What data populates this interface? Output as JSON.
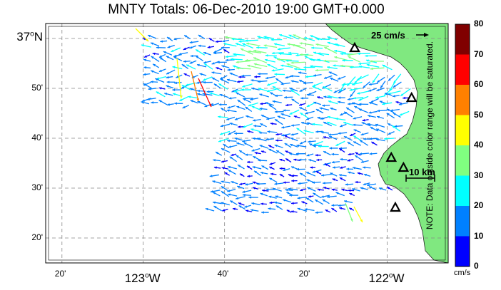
{
  "map": {
    "title": "MNTY Totals: 06-Dec-2010 19:00 GMT+0.000",
    "lat_labels": [
      {
        "text": "37",
        "sup": "o",
        "suffix": "N",
        "lat": 37.0,
        "big": true
      },
      {
        "text": "50'",
        "lat": 36.8333
      },
      {
        "text": "40'",
        "lat": 36.6667
      },
      {
        "text": "30'",
        "lat": 36.5
      },
      {
        "text": "20'",
        "lat": 36.3333
      }
    ],
    "lon_labels": [
      {
        "text": "20'",
        "lon": -123.3333
      },
      {
        "text": "123",
        "sup": "o",
        "suffix": "W",
        "lon": -123.0,
        "big": true
      },
      {
        "text": "40'",
        "lon": -122.6667
      },
      {
        "text": "20'",
        "lon": -122.3333
      },
      {
        "text": "122",
        "sup": "o",
        "suffix": "W",
        "lon": -122.0,
        "big": true
      }
    ],
    "extent": {
      "lon_min": -123.4,
      "lon_max": -121.75,
      "lat_min": 36.25,
      "lat_max": 37.05
    },
    "reference_arrow_label": "25 cm/s",
    "scale_bar_label": "10 km",
    "grid": true
  },
  "colorbar": {
    "note": "NOTE: Data outside color range will be saturated.",
    "unit": "cm/s",
    "ticks": [
      "0",
      "10",
      "20",
      "30",
      "40",
      "50",
      "60",
      "70",
      "80"
    ],
    "colors": [
      "#0000ff",
      "#0080ff",
      "#00ffff",
      "#80ff80",
      "#ffff00",
      "#ff8000",
      "#ff0000",
      "#800000"
    ]
  },
  "land_color": "#80e880",
  "sites": [
    {
      "lon": -122.1333,
      "lat": 36.9667
    },
    {
      "lon": -121.9,
      "lat": 36.8
    },
    {
      "lon": -121.9833,
      "lat": 36.6
    },
    {
      "lon": -121.9333,
      "lat": 36.5667
    },
    {
      "lon": -121.9667,
      "lat": 36.4333
    }
  ]
}
